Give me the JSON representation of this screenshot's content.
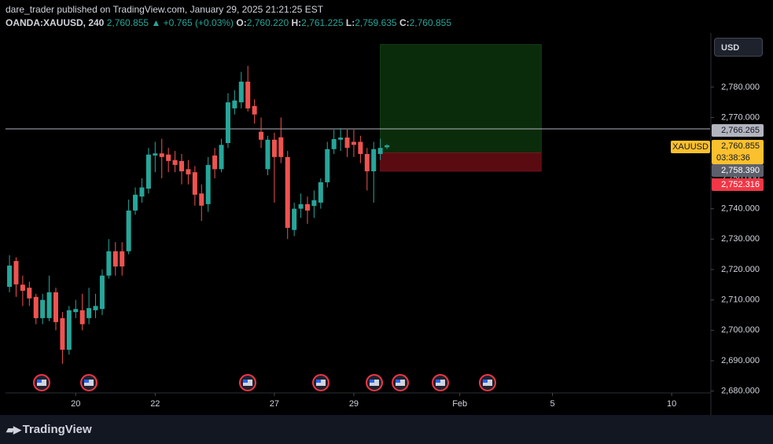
{
  "header": {
    "publisher_line": "dare_trader published on TradingView.com, January 29, 2025 21:21:25 EST",
    "symbol": "OANDA:XAUUSD, 240",
    "last": "2,760.855",
    "change": "▲ +0.765 (+0.03%)",
    "o_label": "O:",
    "o": "2,760.220",
    "h_label": "H:",
    "h": "2,761.225",
    "l_label": "L:",
    "l": "2,759.635",
    "c_label": "C:",
    "c": "2,760.855"
  },
  "currency_button": "USD",
  "footer": {
    "brand": "TradingView"
  },
  "chart_data": {
    "type": "candlestick",
    "x": [
      0,
      1,
      2,
      3,
      4,
      5,
      6,
      7,
      8,
      9,
      10,
      11,
      12,
      13,
      14,
      15,
      16,
      17,
      18,
      19,
      20,
      21,
      22,
      23,
      24,
      25,
      26,
      27,
      28,
      29,
      30,
      31,
      32,
      33,
      34,
      35,
      36,
      37,
      38,
      39,
      40,
      41,
      42,
      43,
      44,
      45,
      46,
      47,
      48,
      49,
      50,
      51,
      52,
      53,
      54,
      55,
      56,
      57
    ],
    "open": [
      2714.3,
      2722.8,
      2715,
      2714,
      2711,
      2704,
      2704,
      2712.5,
      2704,
      2693.6,
      2706,
      2706.6,
      2704,
      2706.6,
      2707,
      2718,
      2726,
      2726,
      2726,
      2739.4,
      2744,
      2746.6,
      2757.5,
      2758.2,
      2757.8,
      2756,
      2755.7,
      2753,
      2752,
      2745,
      2741.5,
      2757.5,
      2753,
      2761.6,
      2773,
      2775,
      2781.8,
      2773.8,
      2765.3,
      2753,
      2762.7,
      2763.5,
      2757,
      2733,
      2740,
      2741.5,
      2740.9,
      2742,
      2748.7,
      2759.6,
      2762.7,
      2763.4,
      2762,
      2762,
      2758,
      2752.3,
      2758,
      2760.22
    ],
    "high": [
      2724.7,
      2724,
      2718,
      2716,
      2712,
      2712,
      2718,
      2714,
      2706,
      2708,
      2710,
      2712,
      2714,
      2712,
      2720,
      2730,
      2729,
      2729,
      2743,
      2747,
      2750,
      2760,
      2762,
      2763,
      2760,
      2759,
      2758,
      2756,
      2754,
      2748,
      2757,
      2760,
      2763,
      2778,
      2779,
      2785,
      2787,
      2776,
      2770,
      2764,
      2765,
      2770,
      2759,
      2742,
      2745,
      2744,
      2746,
      2750,
      2762,
      2766,
      2766.5,
      2766,
      2766,
      2764,
      2760,
      2762,
      2763,
      2761.225
    ],
    "low": [
      2712.5,
      2711,
      2708,
      2708,
      2702,
      2702,
      2703,
      2700,
      2689,
      2692,
      2704,
      2700,
      2702,
      2704,
      2705,
      2717,
      2718,
      2718,
      2725,
      2738,
      2742,
      2745,
      2752,
      2750,
      2752,
      2752,
      2748,
      2748,
      2741,
      2736,
      2739,
      2750,
      2752,
      2760,
      2771,
      2773,
      2772,
      2768,
      2760,
      2751,
      2742,
      2755,
      2730,
      2731,
      2737,
      2735,
      2737,
      2740,
      2747,
      2758,
      2759,
      2757,
      2757,
      2755,
      2746,
      2742,
      2756,
      2759.635
    ],
    "close": [
      2721.3,
      2715.1,
      2713,
      2710.5,
      2704,
      2710,
      2712.5,
      2702.7,
      2693.6,
      2706.6,
      2707,
      2702,
      2707.3,
      2708,
      2718,
      2726,
      2721,
      2721,
      2739.4,
      2744.6,
      2747,
      2757.8,
      2758.2,
      2757,
      2755.7,
      2754.4,
      2752.3,
      2751.3,
      2744.6,
      2741,
      2754.4,
      2753,
      2761,
      2775,
      2775.6,
      2781.8,
      2773,
      2771,
      2762.7,
      2762.7,
      2757,
      2757,
      2733.7,
      2740,
      2741.5,
      2739.4,
      2742.8,
      2748.7,
      2759.6,
      2762.9,
      2763.4,
      2760,
      2761,
      2758,
      2752.3,
      2759.6,
      2760,
      2760.855
    ],
    "up_color": "#26a69a",
    "down_color": "#ef5350",
    "xlim": [
      -0.6,
      105.8
    ],
    "xticks": [
      {
        "value": 10,
        "label": "20"
      },
      {
        "value": 22,
        "label": "22"
      },
      {
        "value": 40,
        "label": "27"
      },
      {
        "value": 52,
        "label": "29"
      },
      {
        "value": 68,
        "label": "Feb"
      },
      {
        "value": 82,
        "label": "5"
      },
      {
        "value": 100,
        "label": "10"
      }
    ],
    "ylim": [
      2679.4,
      2797.8
    ],
    "yticks": [
      {
        "value": 2680,
        "label": "2,680.000"
      },
      {
        "value": 2690,
        "label": "2,690.000"
      },
      {
        "value": 2700,
        "label": "2,700.000"
      },
      {
        "value": 2710,
        "label": "2,710.000"
      },
      {
        "value": 2720,
        "label": "2,720.000"
      },
      {
        "value": 2730,
        "label": "2,730.000"
      },
      {
        "value": 2740,
        "label": "2,740.000"
      },
      {
        "value": 2750,
        "label": "2,750.000"
      },
      {
        "value": 2760,
        "label": "2,760.000"
      },
      {
        "value": 2770,
        "label": "2,770.000"
      },
      {
        "value": 2780,
        "label": "2,780.000"
      }
    ],
    "hline": {
      "value": 2766.265,
      "label": "2,766.265"
    },
    "position": {
      "entry": 2758.39,
      "target": 2794,
      "stop": 2752.316,
      "x_start": 56,
      "x_end": 80.3
    },
    "symbol_tag": "XAUUSD",
    "last_price": {
      "value": 2760.855,
      "label": "2,760.855",
      "countdown": "03:38:36"
    },
    "entry_label": {
      "value": 2758.39,
      "label": "2,758.390"
    },
    "stop_label": {
      "value": 2752.316,
      "label": "2,752.316"
    }
  }
}
